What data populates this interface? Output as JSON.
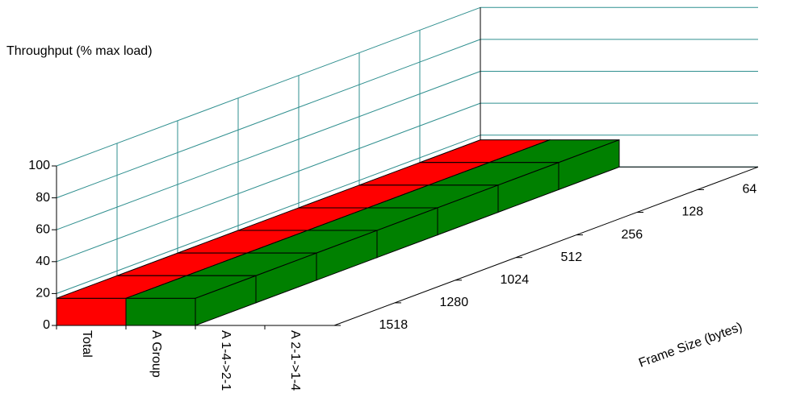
{
  "chart_data": {
    "type": "bar3d",
    "title": "Throughput (% max load)",
    "zlabel": "Frame Size (bytes)",
    "zcategories": [
      "1518",
      "1280",
      "1024",
      "512",
      "256",
      "128",
      "64"
    ],
    "series": [
      {
        "name": "Total",
        "color": "#ff0000",
        "values": [
          17,
          17,
          17,
          17,
          17,
          17,
          17
        ]
      },
      {
        "name": "A Group",
        "color": "#008000",
        "values": [
          17,
          17,
          17,
          17,
          17,
          17,
          17
        ]
      },
      {
        "name": "A 1-4->2-1",
        "color": "#0000ff",
        "values": [
          null,
          null,
          null,
          null,
          null,
          null,
          null
        ]
      },
      {
        "name": "A 2-1->1-4",
        "color": "#ffff00",
        "values": [
          null,
          null,
          null,
          null,
          null,
          null,
          null
        ]
      }
    ],
    "ylim": [
      0,
      100
    ],
    "yticks": [
      0,
      20,
      40,
      60,
      80,
      100
    ],
    "grid": true
  }
}
